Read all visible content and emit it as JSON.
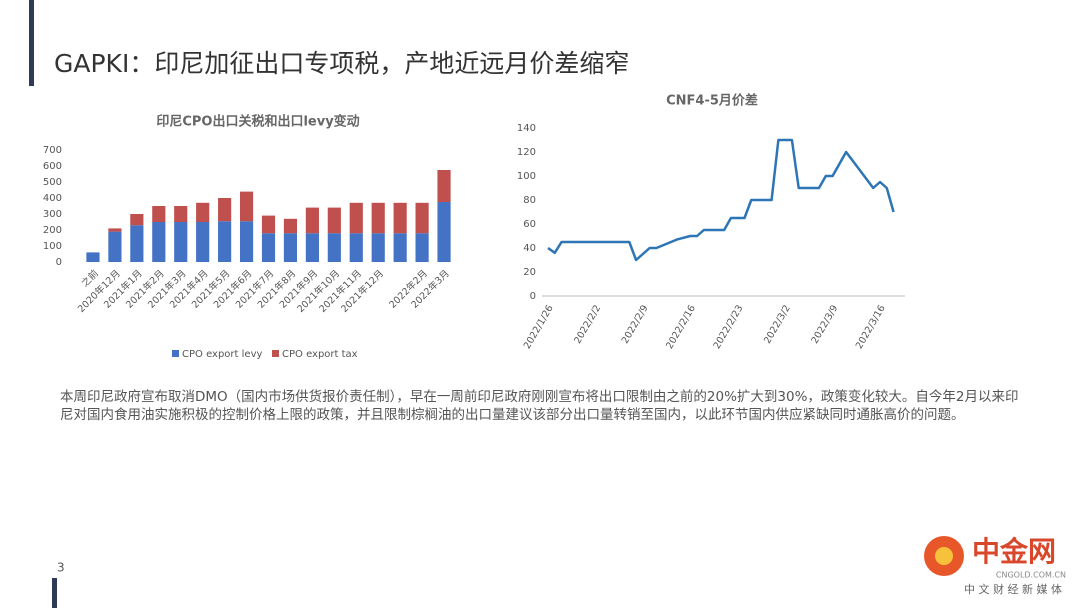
{
  "slide_title": "GAPKI：印尼加征出口专项税，产地近远月价差缩窄",
  "chart_data": [
    {
      "type": "bar",
      "stacked": true,
      "title": "印尼CPO出口关税和出口levy变动",
      "categories": [
        "之前",
        "2020年12月",
        "2021年1月",
        "2021年2月",
        "2021年3月",
        "2021年4月",
        "2021年5月",
        "2021年6月",
        "2021年7月",
        "2021年8月",
        "2021年9月",
        "2021年10月",
        "2021年11月",
        "2021年12月",
        null,
        "2022年2月",
        "2022年3月"
      ],
      "series": [
        {
          "name": "CPO export levy",
          "color": "#4472c4",
          "values": [
            60,
            190,
            230,
            250,
            250,
            250,
            255,
            255,
            180,
            180,
            180,
            180,
            180,
            180,
            180,
            180,
            375
          ]
        },
        {
          "name": "CPO export tax",
          "color": "#c0504d",
          "values": [
            0,
            20,
            70,
            100,
            100,
            120,
            145,
            185,
            110,
            90,
            160,
            160,
            190,
            190,
            190,
            190,
            200
          ]
        }
      ],
      "ylim": [
        0,
        700
      ],
      "yticks": [
        0,
        100,
        200,
        300,
        400,
        500,
        600,
        700
      ],
      "legend": "bottom"
    },
    {
      "type": "line",
      "title": "CNF4-5月价差",
      "x": [
        "2022/1/26",
        "2022/1/27",
        "2022/1/28",
        "2022/2/7",
        "2022/2/8",
        "2022/2/10",
        "2022/2/11",
        "2022/2/14",
        "2022/2/16",
        "2022/2/17",
        "2022/2/18",
        "2022/2/21",
        "2022/2/22",
        "2022/2/24",
        "2022/2/25",
        "2022/2/28",
        "2022/3/1",
        "2022/3/3",
        "2022/3/4",
        "2022/3/7",
        "2022/3/8",
        "2022/3/9",
        "2022/3/11",
        "2022/3/15",
        "2022/3/16",
        "2022/3/17",
        "2022/3/18"
      ],
      "series": [
        {
          "name": "CNF4-5月价差",
          "color": "#2e75b6",
          "values": [
            40,
            36,
            45,
            45,
            30,
            40,
            40,
            47,
            50,
            50,
            55,
            55,
            65,
            65,
            80,
            80,
            130,
            130,
            90,
            90,
            100,
            100,
            120,
            90,
            95,
            90,
            70
          ]
        }
      ],
      "xticks": [
        "2022/1/26",
        "2022/2/2",
        "2022/2/9",
        "2022/2/16",
        "2022/2/23",
        "2022/3/2",
        "2022/3/9",
        "2022/3/16"
      ],
      "ylim": [
        0,
        140
      ],
      "yticks": [
        0,
        20,
        40,
        60,
        80,
        100,
        120,
        140
      ]
    }
  ],
  "paragraph": "本周印尼政府宣布取消DMO（国内市场供货报价责任制），早在一周前印尼政府刚刚宣布将出口限制由之前的20%扩大到30%，政策变化较大。自今年2月以来印尼对国内食用油实施积极的控制价格上限的政策，并且限制棕榈油的出口量建议该部分出口量转销至国内，以此环节国内供应紧缺同时通胀高价的问题。",
  "page_number": "3",
  "logo": {
    "name": "中金网",
    "url": "CNGOLD.COM.CN",
    "slogan": "中 文 财 经 新 媒 体"
  }
}
